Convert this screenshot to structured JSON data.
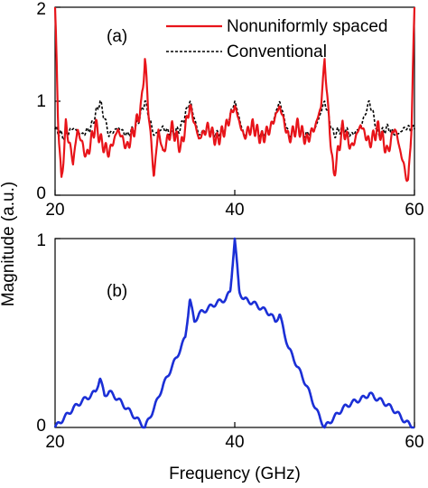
{
  "ylabel": "Magnitude (a.u.)",
  "xlabel": "Frequency (GHz)",
  "colors": {
    "nonuniform": "#e8141a",
    "conventional": "#000000",
    "panel_b": "#1b2fd6"
  },
  "chart_data": [
    {
      "type": "line",
      "panel_label": "(a)",
      "xlim": [
        20,
        60
      ],
      "ylim": [
        0,
        2
      ],
      "xticks": [
        20,
        40,
        60
      ],
      "yticks": [
        0,
        1,
        2
      ],
      "legend_position": "top-right",
      "grid": false,
      "series": [
        {
          "name": "Nonuniformly spaced",
          "style": "solid",
          "baseline": 0.65,
          "x": [
            20,
            20.3,
            20.7,
            21.2,
            22,
            22.5,
            23.5,
            24.5,
            25.2,
            26,
            27,
            28,
            29,
            29.6,
            30,
            30.4,
            31,
            31.5,
            32,
            33,
            34,
            35,
            36,
            37,
            38,
            39,
            40,
            41,
            42,
            43,
            44,
            45,
            46,
            47,
            48,
            49,
            49.6,
            50,
            50.4,
            51,
            52,
            53,
            54,
            55,
            56,
            57,
            57.8,
            58.6,
            59.3,
            59.7,
            60
          ],
          "y": [
            2.0,
            0.9,
            0.12,
            0.75,
            0.35,
            0.7,
            0.4,
            0.75,
            0.55,
            0.45,
            0.7,
            0.5,
            0.75,
            0.95,
            1.45,
            0.9,
            0.2,
            0.7,
            0.45,
            0.72,
            0.5,
            0.95,
            0.6,
            0.72,
            0.58,
            0.72,
            0.95,
            0.62,
            0.74,
            0.6,
            0.72,
            0.95,
            0.6,
            0.74,
            0.58,
            0.74,
            0.95,
            1.45,
            0.9,
            0.2,
            0.72,
            0.5,
            0.75,
            0.55,
            0.72,
            0.45,
            0.73,
            0.4,
            0.12,
            0.8,
            2.0
          ]
        },
        {
          "name": "Conventional",
          "style": "dashed",
          "baseline": 0.7,
          "x": [
            20,
            21,
            22,
            23,
            24,
            25,
            26,
            27,
            28,
            29,
            30,
            31,
            32,
            33,
            34,
            35,
            36,
            37,
            38,
            39,
            40,
            41,
            42,
            43,
            44,
            45,
            46,
            47,
            48,
            49,
            50,
            51,
            52,
            53,
            54,
            55,
            56,
            57,
            58,
            59,
            60
          ],
          "y": [
            0.7,
            0.62,
            0.72,
            0.64,
            0.72,
            1.0,
            0.64,
            0.72,
            0.64,
            0.72,
            1.0,
            0.64,
            0.72,
            0.64,
            0.72,
            1.0,
            0.64,
            0.72,
            0.64,
            0.72,
            1.0,
            0.64,
            0.72,
            0.64,
            0.72,
            1.0,
            0.64,
            0.72,
            0.64,
            0.72,
            1.0,
            0.64,
            0.72,
            0.64,
            0.72,
            1.0,
            0.64,
            0.72,
            0.64,
            0.72,
            0.7
          ]
        }
      ]
    },
    {
      "type": "line",
      "panel_label": "(b)",
      "xlim": [
        20,
        60
      ],
      "ylim": [
        0,
        1
      ],
      "xticks": [
        20,
        40,
        60
      ],
      "yticks": [
        0,
        1
      ],
      "grid": false,
      "series": [
        {
          "x": [
            20,
            21,
            22,
            23,
            24,
            24.5,
            25,
            25.5,
            26,
            27,
            28,
            29,
            30,
            31,
            32,
            33,
            34,
            34.5,
            35,
            35.5,
            36,
            37,
            38,
            39,
            39.5,
            40,
            40.5,
            41,
            42,
            43,
            44,
            44.5,
            45,
            45.5,
            46,
            47,
            48,
            49,
            50,
            51,
            52,
            53,
            54,
            54.5,
            55,
            55.5,
            56,
            57,
            58,
            59,
            60
          ],
          "y": [
            0.0,
            0.05,
            0.1,
            0.14,
            0.17,
            0.19,
            0.26,
            0.17,
            0.19,
            0.15,
            0.1,
            0.05,
            0.0,
            0.1,
            0.22,
            0.32,
            0.42,
            0.48,
            0.68,
            0.56,
            0.6,
            0.63,
            0.66,
            0.68,
            0.72,
            1.0,
            0.72,
            0.68,
            0.66,
            0.63,
            0.6,
            0.56,
            0.6,
            0.5,
            0.42,
            0.32,
            0.22,
            0.1,
            0.0,
            0.05,
            0.1,
            0.13,
            0.15,
            0.16,
            0.18,
            0.16,
            0.15,
            0.12,
            0.08,
            0.03,
            0.0
          ]
        }
      ]
    }
  ]
}
